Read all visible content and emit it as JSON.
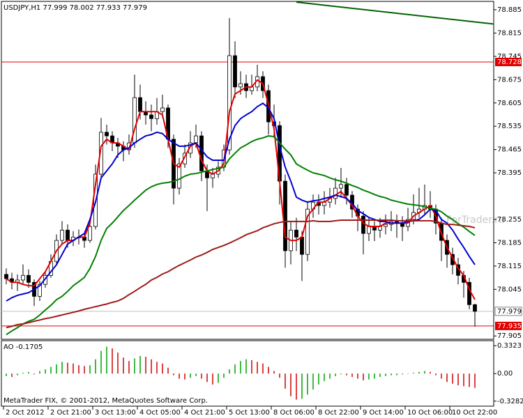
{
  "chart_data": {
    "type": "candlestick",
    "title": "USDJPY,H1  77.999 78.002 77.933 77.979",
    "watermark": "ForTrader.ru",
    "footer": "MetaTrader FIX, © 2001-2012, MetaQuotes Software Corp.",
    "categories": [
      "2 Oct 2012",
      null,
      null,
      null,
      null,
      null,
      null,
      null,
      "2 Oct 21:00",
      null,
      null,
      null,
      null,
      null,
      null,
      null,
      "3 Oct 13:00",
      null,
      null,
      null,
      null,
      null,
      null,
      null,
      "4 Oct 05:00",
      null,
      null,
      null,
      null,
      null,
      null,
      null,
      "4 Oct 21:00",
      null,
      null,
      null,
      null,
      null,
      null,
      null,
      "5 Oct 13:00",
      null,
      null,
      null,
      null,
      null,
      null,
      null,
      "8 Oct 06:00",
      null,
      null,
      null,
      null,
      null,
      null,
      null,
      "8 Oct 22:00",
      null,
      null,
      null,
      null,
      null,
      null,
      null,
      "9 Oct 14:00",
      null,
      null,
      null,
      null,
      null,
      null,
      null,
      "10 Oct 06:00",
      null,
      null,
      null,
      null,
      null,
      null,
      null,
      "10 Oct 22:00",
      null,
      null,
      null,
      null
    ],
    "open": [
      78.09,
      78.077,
      78.066,
      78.073,
      78.087,
      78.066,
      78.024,
      78.06,
      78.087,
      78.129,
      78.192,
      78.223,
      78.192,
      78.202,
      78.202,
      78.192,
      78.234,
      78.391,
      78.517,
      78.506,
      78.485,
      78.475,
      78.464,
      78.485,
      78.621,
      78.579,
      78.569,
      78.558,
      78.579,
      78.59,
      78.496,
      78.349,
      78.422,
      78.454,
      78.485,
      78.506,
      78.401,
      78.38,
      78.391,
      78.412,
      78.464,
      78.747,
      78.653,
      78.663,
      78.642,
      78.653,
      78.684,
      78.642,
      78.548,
      78.537,
      78.37,
      78.161,
      78.223,
      78.202,
      78.15,
      78.286,
      78.307,
      78.297,
      78.307,
      78.318,
      78.349,
      78.36,
      78.328,
      78.286,
      78.265,
      78.213,
      78.234,
      78.223,
      78.234,
      78.24,
      78.249,
      78.244,
      78.234,
      78.255,
      78.276,
      78.286,
      78.297,
      78.286,
      78.244,
      78.192,
      78.15,
      78.119,
      78.087,
      78.066,
      77.999
    ],
    "high": [
      78.108,
      78.095,
      78.09,
      78.12,
      78.105,
      78.075,
      78.07,
      78.1,
      78.15,
      78.21,
      78.25,
      78.24,
      78.22,
      78.225,
      78.215,
      78.255,
      78.42,
      78.56,
      78.54,
      78.52,
      78.5,
      78.49,
      78.51,
      78.69,
      78.66,
      78.61,
      78.6,
      78.62,
      78.63,
      78.6,
      78.51,
      78.44,
      78.48,
      78.52,
      78.54,
      78.52,
      78.42,
      78.41,
      78.43,
      78.48,
      78.86,
      78.79,
      78.7,
      78.69,
      78.69,
      78.72,
      78.7,
      78.66,
      78.6,
      78.55,
      78.39,
      78.25,
      78.26,
      78.22,
      78.31,
      78.33,
      78.33,
      78.34,
      78.35,
      78.38,
      78.41,
      78.38,
      78.34,
      78.3,
      78.28,
      78.26,
      78.25,
      78.26,
      78.27,
      78.28,
      78.27,
      78.265,
      78.29,
      78.33,
      78.35,
      78.36,
      78.34,
      78.3,
      78.26,
      78.21,
      78.17,
      78.14,
      78.1,
      78.08,
      78.002
    ],
    "low": [
      78.06,
      78.045,
      78.04,
      78.06,
      78.05,
      77.995,
      78.01,
      78.05,
      78.08,
      78.12,
      78.18,
      78.17,
      78.175,
      78.18,
      78.17,
      78.185,
      78.225,
      78.38,
      78.48,
      78.46,
      78.44,
      78.43,
      78.45,
      78.47,
      78.555,
      78.54,
      78.52,
      78.54,
      78.56,
      78.47,
      78.3,
      78.33,
      78.41,
      78.44,
      78.47,
      78.37,
      78.28,
      78.35,
      78.38,
      78.4,
      78.45,
      78.62,
      78.63,
      78.62,
      78.63,
      78.64,
      78.62,
      78.51,
      78.5,
      78.3,
      78.11,
      78.12,
      78.16,
      78.07,
      78.13,
      78.26,
      78.27,
      78.27,
      78.29,
      78.3,
      78.32,
      78.3,
      78.26,
      78.22,
      78.15,
      78.19,
      78.19,
      78.2,
      78.21,
      78.22,
      78.2,
      78.19,
      78.22,
      78.24,
      78.26,
      78.27,
      78.26,
      78.21,
      78.13,
      78.11,
      78.09,
      78.06,
      78.02,
      77.985,
      77.933
    ],
    "close": [
      78.077,
      78.066,
      78.073,
      78.087,
      78.066,
      78.024,
      78.06,
      78.087,
      78.129,
      78.192,
      78.223,
      78.192,
      78.202,
      78.202,
      78.192,
      78.234,
      78.391,
      78.517,
      78.506,
      78.485,
      78.475,
      78.464,
      78.485,
      78.621,
      78.579,
      78.569,
      78.558,
      78.579,
      78.59,
      78.496,
      78.349,
      78.422,
      78.454,
      78.485,
      78.506,
      78.401,
      78.38,
      78.391,
      78.412,
      78.464,
      78.747,
      78.653,
      78.663,
      78.642,
      78.653,
      78.684,
      78.642,
      78.548,
      78.537,
      78.37,
      78.161,
      78.223,
      78.202,
      78.15,
      78.286,
      78.307,
      78.297,
      78.307,
      78.318,
      78.349,
      78.36,
      78.328,
      78.286,
      78.265,
      78.213,
      78.234,
      78.223,
      78.234,
      78.24,
      78.249,
      78.244,
      78.234,
      78.255,
      78.276,
      78.286,
      78.297,
      78.286,
      78.244,
      78.192,
      78.15,
      78.119,
      78.087,
      78.066,
      77.999,
      77.979
    ],
    "up_color": "#ffffff",
    "down_color": "#000000",
    "lines": [
      {
        "color": "#e00000",
        "values": [
          78.077,
          78.066,
          78.066,
          78.06,
          78.056,
          78.056,
          78.077,
          78.098,
          78.129,
          78.161,
          78.181,
          78.192,
          78.192,
          78.202,
          78.202,
          78.244,
          78.36,
          78.475,
          78.496,
          78.485,
          78.485,
          78.475,
          78.464,
          78.527,
          78.579,
          78.579,
          78.579,
          78.579,
          78.569,
          78.496,
          78.422,
          78.412,
          78.443,
          78.475,
          78.485,
          78.433,
          78.401,
          78.391,
          78.401,
          78.422,
          78.579,
          78.632,
          78.642,
          78.653,
          78.653,
          78.674,
          78.663,
          78.6,
          78.527,
          78.37,
          78.202,
          78.192,
          78.192,
          78.202,
          78.265,
          78.286,
          78.307,
          78.307,
          78.318,
          78.328,
          78.339,
          78.318,
          78.297,
          78.265,
          78.244,
          78.234,
          78.234,
          78.234,
          78.244,
          78.244,
          78.244,
          78.244,
          78.244,
          78.265,
          78.276,
          78.286,
          78.297,
          78.265,
          78.213,
          78.171,
          78.14,
          78.108,
          78.087,
          78.045,
          78.014
        ]
      },
      {
        "color": "#0000d0",
        "values": [
          78.01,
          78.02,
          78.027,
          78.031,
          78.035,
          78.045,
          78.056,
          78.077,
          78.098,
          78.119,
          78.15,
          78.181,
          78.192,
          78.202,
          78.213,
          78.255,
          78.307,
          78.38,
          78.401,
          78.422,
          78.449,
          78.464,
          78.47,
          78.485,
          78.496,
          78.506,
          78.51,
          78.517,
          78.513,
          78.496,
          78.485,
          78.475,
          78.475,
          78.479,
          78.485,
          78.464,
          78.443,
          78.433,
          78.433,
          78.433,
          78.496,
          78.537,
          78.558,
          78.569,
          78.579,
          78.594,
          78.604,
          78.59,
          78.558,
          78.475,
          78.412,
          78.37,
          78.322,
          78.313,
          78.307,
          78.311,
          78.313,
          78.318,
          78.322,
          78.328,
          78.324,
          78.318,
          78.303,
          78.282,
          78.272,
          78.261,
          78.255,
          78.249,
          78.249,
          78.244,
          78.244,
          78.244,
          78.249,
          78.251,
          78.255,
          78.269,
          78.286,
          78.282,
          78.255,
          78.244,
          78.223,
          78.196,
          78.171,
          78.144,
          78.119
        ]
      },
      {
        "color": "#008000",
        "values": [
          77.909,
          77.92,
          77.93,
          77.941,
          77.949,
          77.955,
          77.968,
          77.983,
          77.997,
          78.014,
          78.024,
          78.039,
          78.056,
          78.068,
          78.081,
          78.108,
          78.144,
          78.192,
          78.228,
          78.244,
          78.263,
          78.282,
          78.297,
          78.313,
          78.328,
          78.343,
          78.353,
          78.36,
          78.364,
          78.366,
          78.37,
          78.376,
          78.385,
          78.391,
          78.393,
          78.397,
          78.401,
          78.405,
          78.408,
          78.412,
          78.437,
          78.454,
          78.47,
          78.479,
          78.489,
          78.496,
          78.5,
          78.506,
          78.504,
          78.485,
          78.466,
          78.449,
          78.422,
          78.412,
          78.403,
          78.395,
          78.391,
          78.387,
          78.38,
          78.374,
          78.37,
          78.364,
          78.357,
          78.351,
          78.343,
          78.337,
          78.33,
          78.324,
          78.32,
          78.313,
          78.309,
          78.305,
          78.301,
          78.299,
          78.297,
          78.293,
          78.288,
          78.286,
          78.278,
          78.265,
          78.255,
          78.242,
          78.232,
          78.219,
          78.207
        ]
      },
      {
        "color": "#a01818",
        "values": [
          77.93,
          77.934,
          77.939,
          77.941,
          77.945,
          77.949,
          77.953,
          77.957,
          77.96,
          77.964,
          77.968,
          77.972,
          77.976,
          77.98,
          77.985,
          77.989,
          77.993,
          77.997,
          78.001,
          78.006,
          78.01,
          78.018,
          78.029,
          78.039,
          78.05,
          78.06,
          78.073,
          78.081,
          78.091,
          78.098,
          78.108,
          78.117,
          78.125,
          78.133,
          78.142,
          78.148,
          78.156,
          78.165,
          78.171,
          78.177,
          78.184,
          78.192,
          78.2,
          78.209,
          78.215,
          78.221,
          78.23,
          78.236,
          78.242,
          78.246,
          78.249,
          78.249,
          78.249,
          78.249,
          78.249,
          78.251,
          78.249,
          78.249,
          78.249,
          78.251,
          78.253,
          78.253,
          78.253,
          78.253,
          78.253,
          78.253,
          78.253,
          78.253,
          78.253,
          78.253,
          78.251,
          78.251,
          78.251,
          78.251,
          78.251,
          78.251,
          78.251,
          78.249,
          78.244,
          78.24,
          78.24,
          78.238,
          78.236,
          78.234,
          78.23
        ]
      }
    ],
    "trendline": {
      "color": "#006400",
      "start": [
        52,
        78.908
      ],
      "end": [
        87.4,
        78.842
      ]
    },
    "hlines": [
      {
        "value": 78.728,
        "color": "#e00000"
      },
      {
        "value": 77.935,
        "color": "#e00000"
      }
    ],
    "bid": {
      "value": 77.979,
      "color": "#c0c0c0"
    },
    "ylim": [
      77.895,
      78.908
    ],
    "yticks": [
      78.885,
      78.815,
      78.745,
      78.675,
      78.605,
      78.535,
      78.465,
      78.395,
      78.255,
      78.185,
      78.115,
      78.045,
      77.905
    ],
    "indicator": {
      "label": "AO -0.1705",
      "up_color": "#00a000",
      "down_color": "#d00000",
      "ylim": [
        -0.388,
        0.392
      ],
      "yticks": [
        0.3323,
        {
          "value": 0,
          "label": "0.00"
        },
        -0.3282
      ],
      "values": [
        -0.03,
        -0.04,
        -0.02,
        0.01,
        0.02,
        -0.01,
        0.03,
        0.05,
        0.08,
        0.11,
        0.14,
        0.13,
        0.12,
        0.1,
        0.09,
        0.1,
        0.17,
        0.27,
        0.32,
        0.3,
        0.25,
        0.19,
        0.15,
        0.18,
        0.21,
        0.2,
        0.17,
        0.14,
        0.12,
        0.07,
        -0.02,
        -0.06,
        -0.07,
        -0.05,
        -0.03,
        -0.06,
        -0.1,
        -0.13,
        -0.11,
        -0.05,
        0.05,
        0.11,
        0.15,
        0.17,
        0.16,
        0.14,
        0.12,
        0.08,
        0.03,
        -0.05,
        -0.18,
        -0.27,
        -0.31,
        -0.3,
        -0.25,
        -0.19,
        -0.13,
        -0.09,
        -0.06,
        -0.03,
        -0.01,
        -0.02,
        -0.04,
        -0.06,
        -0.08,
        -0.07,
        -0.06,
        -0.04,
        -0.03,
        -0.02,
        -0.02,
        -0.01,
        -0.005,
        0.01,
        0.02,
        0.03,
        0.02,
        -0.02,
        -0.06,
        -0.1,
        -0.12,
        -0.14,
        -0.15,
        -0.16,
        -0.1705
      ]
    }
  }
}
